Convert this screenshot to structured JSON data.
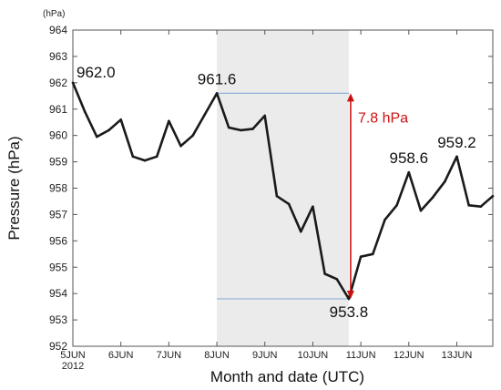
{
  "chart_data": {
    "type": "line",
    "unit_label": "(hPa)",
    "ylabel": "Pressure (hPa)",
    "xlabel": "Month and date (UTC)",
    "ylim": [
      952,
      964
    ],
    "yticks": [
      952,
      953,
      954,
      955,
      956,
      957,
      958,
      959,
      960,
      961,
      962,
      963,
      964
    ],
    "xlim": [
      0,
      8.75
    ],
    "xticks": [
      {
        "x": 0,
        "label": "5JUN",
        "sublabel": "2012"
      },
      {
        "x": 1,
        "label": "6JUN"
      },
      {
        "x": 2,
        "label": "7JUN"
      },
      {
        "x": 3,
        "label": "8JUN"
      },
      {
        "x": 4,
        "label": "9JUN"
      },
      {
        "x": 5,
        "label": "10JUN"
      },
      {
        "x": 6,
        "label": "11JUN"
      },
      {
        "x": 7,
        "label": "12JUN"
      },
      {
        "x": 8,
        "label": "13JUN"
      }
    ],
    "shaded_period": [
      3,
      5.75
    ],
    "series": [
      {
        "color": "#1a1a1a",
        "x": [
          0,
          0.25,
          0.5,
          0.75,
          1.0,
          1.25,
          1.5,
          1.75,
          2.0,
          2.25,
          2.5,
          2.75,
          3.0,
          3.25,
          3.5,
          3.75,
          4.0,
          4.25,
          4.5,
          4.75,
          5.0,
          5.25,
          5.5,
          5.75,
          6.0,
          6.25,
          6.5,
          6.75,
          7.0,
          7.25,
          7.5,
          7.75,
          8.0,
          8.25,
          8.5,
          8.75
        ],
        "values": [
          962.0,
          960.9,
          959.95,
          960.2,
          960.6,
          959.2,
          959.05,
          959.2,
          960.55,
          959.6,
          960.0,
          960.8,
          961.6,
          960.3,
          960.2,
          960.25,
          960.75,
          957.7,
          957.4,
          956.35,
          957.3,
          954.75,
          954.55,
          953.8,
          955.4,
          955.5,
          956.8,
          957.35,
          958.6,
          957.15,
          957.65,
          958.25,
          959.2,
          957.35,
          957.3,
          957.7
        ]
      }
    ],
    "annotations": [
      {
        "text": "962.0",
        "x": 0,
        "y": 962.0
      },
      {
        "text": "961.6",
        "x": 3.0,
        "y": 961.6
      },
      {
        "text": "953.8",
        "x": 5.75,
        "y": 953.8
      },
      {
        "text": "958.6",
        "x": 7.0,
        "y": 958.6
      },
      {
        "text": "959.2",
        "x": 8.0,
        "y": 959.2
      }
    ],
    "difference": {
      "text": "7.8 hPa",
      "from": 961.6,
      "to": 953.8,
      "at_x": 5.75,
      "color": "#cc1111"
    },
    "reference_lines": [
      {
        "y": 961.6,
        "x_from": 3.0,
        "x_to": 5.75,
        "color": "#8fb0d6"
      },
      {
        "y": 953.8,
        "x_from": 3.0,
        "x_to": 5.75,
        "color": "#8fb0d6"
      }
    ],
    "shade_color": "#ebebeb",
    "grid": false,
    "legend": "none"
  }
}
